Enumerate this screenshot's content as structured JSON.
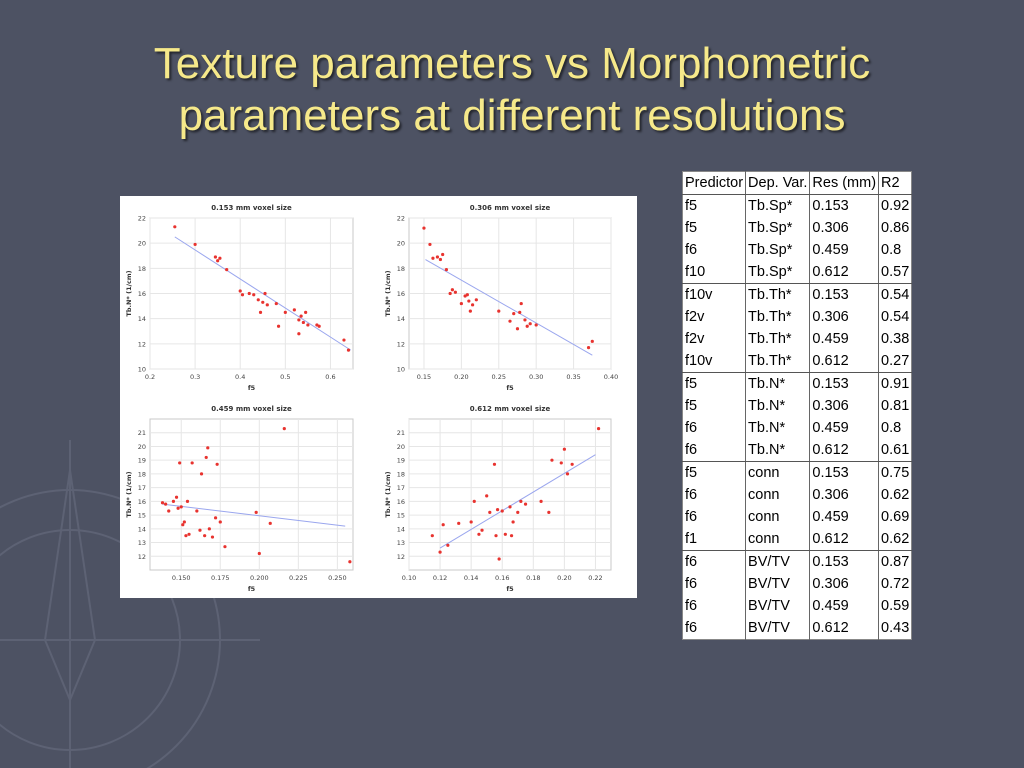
{
  "slide": {
    "title_line1": "Texture parameters vs Morphometric",
    "title_line2": "parameters at different resolutions"
  },
  "colors": {
    "background": "#4d5263",
    "title": "#f6e98a",
    "point": "#e8332f",
    "fit_line": "#9aa6ee"
  },
  "table": {
    "headers": [
      "Predictor",
      "Dep. Var.",
      "Res (mm)",
      "R2"
    ],
    "rows": [
      [
        "f5",
        "Tb.Sp*",
        "0.153",
        "0.92"
      ],
      [
        "f5",
        "Tb.Sp*",
        "0.306",
        "0.86"
      ],
      [
        "f6",
        "Tb.Sp*",
        "0.459",
        "0.8"
      ],
      [
        "f10",
        "Tb.Sp*",
        "0.612",
        "0.57"
      ],
      [
        "f10v",
        "Tb.Th*",
        "0.153",
        "0.54"
      ],
      [
        "f2v",
        "Tb.Th*",
        "0.306",
        "0.54"
      ],
      [
        "f2v",
        "Tb.Th*",
        "0.459",
        "0.38"
      ],
      [
        "f10v",
        "Tb.Th*",
        "0.612",
        "0.27"
      ],
      [
        "f5",
        "Tb.N*",
        "0.153",
        "0.91"
      ],
      [
        "f5",
        "Tb.N*",
        "0.306",
        "0.81"
      ],
      [
        "f6",
        "Tb.N*",
        "0.459",
        "0.8"
      ],
      [
        "f6",
        "Tb.N*",
        "0.612",
        "0.61"
      ],
      [
        "f5",
        "conn",
        "0.153",
        "0.75"
      ],
      [
        "f6",
        "conn",
        "0.306",
        "0.62"
      ],
      [
        "f6",
        "conn",
        "0.459",
        "0.69"
      ],
      [
        "f1",
        "conn",
        "0.612",
        "0.62"
      ],
      [
        "f6",
        "BV/TV",
        "0.153",
        "0.87"
      ],
      [
        "f6",
        "BV/TV",
        "0.306",
        "0.72"
      ],
      [
        "f6",
        "BV/TV",
        "0.459",
        "0.59"
      ],
      [
        "f6",
        "BV/TV",
        "0.612",
        "0.43"
      ]
    ]
  },
  "chart_data": [
    {
      "type": "scatter",
      "title": "0.153 mm voxel size",
      "xlabel": "f5",
      "ylabel": "Tb.N* (1/cm)",
      "xlim": [
        0.2,
        0.65
      ],
      "ylim": [
        10,
        22
      ],
      "xticks": [
        0.2,
        0.3,
        0.4,
        0.5,
        0.6
      ],
      "yticks": [
        10,
        12,
        14,
        16,
        18,
        20,
        22
      ],
      "xtick_labels": [
        "0.2",
        "0.3",
        "0.4",
        "0.5",
        "0.6"
      ],
      "ytick_labels": [
        "10",
        "12",
        "14",
        "16",
        "18",
        "20",
        "22"
      ],
      "grid": true,
      "points": [
        [
          0.255,
          21.3
        ],
        [
          0.3,
          19.9
        ],
        [
          0.345,
          18.9
        ],
        [
          0.35,
          18.6
        ],
        [
          0.355,
          18.8
        ],
        [
          0.37,
          17.9
        ],
        [
          0.4,
          16.2
        ],
        [
          0.405,
          15.9
        ],
        [
          0.42,
          16
        ],
        [
          0.43,
          15.9
        ],
        [
          0.44,
          15.5
        ],
        [
          0.45,
          15.3
        ],
        [
          0.455,
          16
        ],
        [
          0.46,
          15.1
        ],
        [
          0.445,
          14.5
        ],
        [
          0.48,
          15.2
        ],
        [
          0.485,
          13.4
        ],
        [
          0.5,
          14.5
        ],
        [
          0.52,
          14.7
        ],
        [
          0.53,
          13.9
        ],
        [
          0.535,
          14.2
        ],
        [
          0.54,
          13.7
        ],
        [
          0.545,
          14.5
        ],
        [
          0.55,
          13.5
        ],
        [
          0.53,
          12.8
        ],
        [
          0.57,
          13.5
        ],
        [
          0.575,
          13.4
        ],
        [
          0.63,
          12.3
        ],
        [
          0.64,
          11.5
        ]
      ],
      "fit": [
        [
          0.255,
          20.5
        ],
        [
          0.645,
          11.5
        ]
      ]
    },
    {
      "type": "scatter",
      "title": "0.306 mm voxel size",
      "xlabel": "f5",
      "ylabel": "Tb.N* (1/cm)",
      "xlim": [
        0.13,
        0.4
      ],
      "ylim": [
        10,
        22
      ],
      "xticks": [
        0.15,
        0.2,
        0.25,
        0.3,
        0.35,
        0.4
      ],
      "yticks": [
        10,
        12,
        14,
        16,
        18,
        20,
        22
      ],
      "xtick_labels": [
        "0.15",
        "0.20",
        "0.25",
        "0.30",
        "0.35",
        "0.40"
      ],
      "ytick_labels": [
        "10",
        "12",
        "14",
        "16",
        "18",
        "20",
        "22"
      ],
      "grid": true,
      "points": [
        [
          0.15,
          21.2
        ],
        [
          0.158,
          19.9
        ],
        [
          0.162,
          18.8
        ],
        [
          0.168,
          18.9
        ],
        [
          0.172,
          18.7
        ],
        [
          0.175,
          19.1
        ],
        [
          0.18,
          17.9
        ],
        [
          0.185,
          16
        ],
        [
          0.188,
          16.3
        ],
        [
          0.192,
          16.1
        ],
        [
          0.2,
          15.2
        ],
        [
          0.205,
          15.8
        ],
        [
          0.208,
          15.9
        ],
        [
          0.21,
          15.4
        ],
        [
          0.212,
          14.6
        ],
        [
          0.215,
          15.1
        ],
        [
          0.22,
          15.5
        ],
        [
          0.25,
          14.6
        ],
        [
          0.265,
          13.8
        ],
        [
          0.27,
          14.4
        ],
        [
          0.275,
          13.2
        ],
        [
          0.278,
          14.5
        ],
        [
          0.28,
          15.2
        ],
        [
          0.285,
          13.9
        ],
        [
          0.288,
          13.4
        ],
        [
          0.292,
          13.6
        ],
        [
          0.3,
          13.5
        ],
        [
          0.37,
          11.7
        ],
        [
          0.375,
          12.2
        ]
      ],
      "fit": [
        [
          0.152,
          18.7
        ],
        [
          0.375,
          11.1
        ]
      ]
    },
    {
      "type": "scatter",
      "title": "0.459 mm voxel size",
      "xlabel": "f5",
      "ylabel": "Tb.N* (1/cm)",
      "xlim": [
        0.13,
        0.26
      ],
      "ylim": [
        11,
        22
      ],
      "xticks": [
        0.15,
        0.175,
        0.2,
        0.225,
        0.25
      ],
      "yticks": [
        12,
        13,
        14,
        15,
        16,
        17,
        18,
        19,
        20,
        21
      ],
      "xtick_labels": [
        "0.150",
        "0.175",
        "0.200",
        "0.225",
        "0.250"
      ],
      "ytick_labels": [
        "12",
        "13",
        "14",
        "15",
        "16",
        "17",
        "18",
        "19",
        "20",
        "21"
      ],
      "grid": true,
      "points": [
        [
          0.138,
          15.9
        ],
        [
          0.14,
          15.8
        ],
        [
          0.142,
          15.3
        ],
        [
          0.145,
          16
        ],
        [
          0.147,
          16.3
        ],
        [
          0.148,
          15.5
        ],
        [
          0.149,
          18.8
        ],
        [
          0.15,
          15.6
        ],
        [
          0.151,
          14.3
        ],
        [
          0.152,
          14.5
        ],
        [
          0.153,
          13.5
        ],
        [
          0.154,
          16
        ],
        [
          0.155,
          13.6
        ],
        [
          0.157,
          18.8
        ],
        [
          0.16,
          15.3
        ],
        [
          0.162,
          13.9
        ],
        [
          0.163,
          18
        ],
        [
          0.165,
          13.5
        ],
        [
          0.166,
          19.2
        ],
        [
          0.167,
          19.9
        ],
        [
          0.168,
          14
        ],
        [
          0.17,
          13.4
        ],
        [
          0.172,
          14.8
        ],
        [
          0.173,
          18.7
        ],
        [
          0.175,
          14.5
        ],
        [
          0.178,
          12.7
        ],
        [
          0.198,
          15.2
        ],
        [
          0.2,
          12.2
        ],
        [
          0.207,
          14.4
        ],
        [
          0.216,
          21.3
        ],
        [
          0.258,
          11.6
        ]
      ],
      "fit": [
        [
          0.138,
          15.8
        ],
        [
          0.255,
          14.2
        ]
      ]
    },
    {
      "type": "scatter",
      "title": "0.612 mm voxel size",
      "xlabel": "f5",
      "ylabel": "Tb.N* (1/cm)",
      "xlim": [
        0.1,
        0.23
      ],
      "ylim": [
        11,
        22
      ],
      "xticks": [
        0.1,
        0.12,
        0.14,
        0.16,
        0.18,
        0.2,
        0.22
      ],
      "yticks": [
        12,
        13,
        14,
        15,
        16,
        17,
        18,
        19,
        20,
        21
      ],
      "xtick_labels": [
        "0.10",
        "0.12",
        "0.14",
        "0.16",
        "0.18",
        "0.20",
        "0.22"
      ],
      "ytick_labels": [
        "12",
        "13",
        "14",
        "15",
        "16",
        "17",
        "18",
        "19",
        "20",
        "21"
      ],
      "grid": true,
      "points": [
        [
          0.115,
          13.5
        ],
        [
          0.12,
          12.3
        ],
        [
          0.122,
          14.3
        ],
        [
          0.125,
          12.8
        ],
        [
          0.132,
          14.4
        ],
        [
          0.14,
          14.5
        ],
        [
          0.142,
          16
        ],
        [
          0.145,
          13.6
        ],
        [
          0.147,
          13.9
        ],
        [
          0.15,
          16.4
        ],
        [
          0.152,
          15.2
        ],
        [
          0.155,
          18.7
        ],
        [
          0.156,
          13.5
        ],
        [
          0.157,
          15.4
        ],
        [
          0.158,
          11.8
        ],
        [
          0.16,
          15.3
        ],
        [
          0.162,
          13.6
        ],
        [
          0.165,
          15.6
        ],
        [
          0.166,
          13.5
        ],
        [
          0.167,
          14.5
        ],
        [
          0.17,
          15.2
        ],
        [
          0.172,
          16
        ],
        [
          0.175,
          15.8
        ],
        [
          0.185,
          16
        ],
        [
          0.19,
          15.2
        ],
        [
          0.192,
          19
        ],
        [
          0.198,
          18.8
        ],
        [
          0.2,
          19.8
        ],
        [
          0.202,
          18
        ],
        [
          0.205,
          18.7
        ],
        [
          0.222,
          21.3
        ]
      ],
      "fit": [
        [
          0.12,
          12.6
        ],
        [
          0.22,
          19.4
        ]
      ]
    }
  ]
}
